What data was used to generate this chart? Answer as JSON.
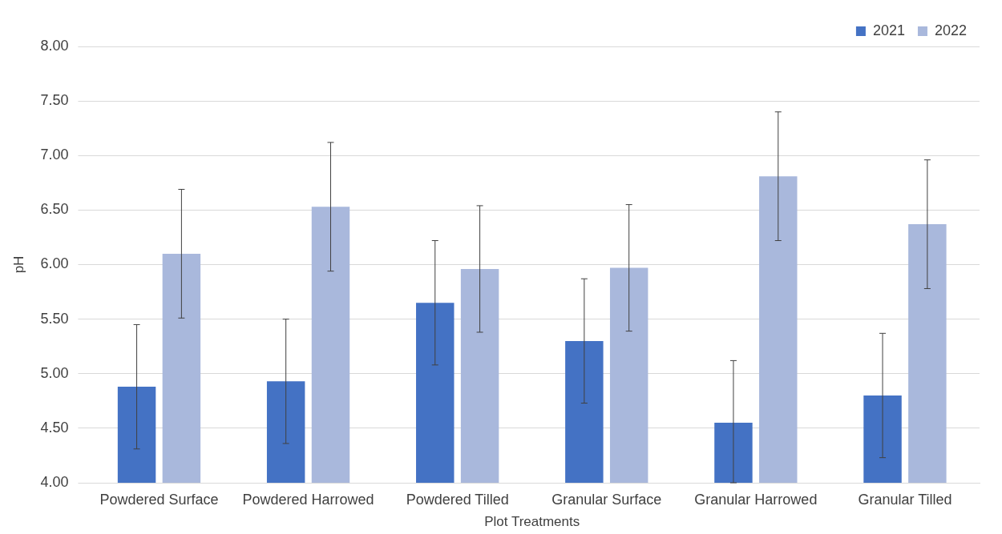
{
  "chart_data": {
    "type": "bar",
    "xlabel": "Plot Treatments",
    "ylabel": "pH",
    "categories": [
      "Powdered Surface",
      "Powdered Harrowed",
      "Powdered Tilled",
      "Granular Surface",
      "Granular Harrowed",
      "Granular Tilled"
    ],
    "series": [
      {
        "name": "2021",
        "color": "#4472c4",
        "values": [
          4.88,
          4.93,
          5.65,
          5.3,
          4.55,
          4.8
        ],
        "errors": [
          0.57,
          0.57,
          0.57,
          0.57,
          [
            4.0,
            5.12
          ],
          0.57
        ]
      },
      {
        "name": "2022",
        "color": "#a9b8dc",
        "values": [
          6.1,
          6.53,
          5.96,
          5.97,
          6.81,
          6.37
        ],
        "errors": [
          0.59,
          0.59,
          0.58,
          0.58,
          0.59,
          0.59
        ]
      }
    ],
    "ylim": [
      4,
      8
    ],
    "yticks": [
      {
        "value": 4,
        "label": "4.00"
      },
      {
        "value": 4.5,
        "label": "4.50"
      },
      {
        "value": 5,
        "label": "5.00"
      },
      {
        "value": 5.5,
        "label": "5.50"
      },
      {
        "value": 6,
        "label": "6.00"
      },
      {
        "value": 6.5,
        "label": "6.50"
      },
      {
        "value": 7,
        "label": "7.00"
      },
      {
        "value": 7.5,
        "label": "7.50"
      },
      {
        "value": 8,
        "label": "8.00"
      }
    ],
    "grid": "y",
    "legend": "top right"
  }
}
